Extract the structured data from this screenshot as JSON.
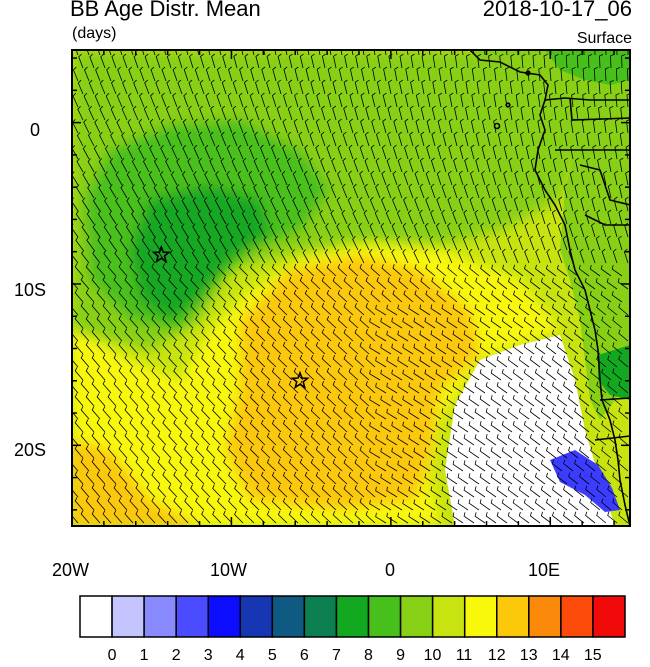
{
  "header": {
    "title": "BB Age Distr. Mean",
    "units": "(days)",
    "datetime": "2018-10-17_06",
    "level": "Surface"
  },
  "axes": {
    "x_ticks": [
      "20W",
      "10W",
      "0",
      "10E"
    ],
    "y_ticks": [
      "0",
      "10S",
      "20S"
    ],
    "lon_range": [
      -20,
      15
    ],
    "lat_range": [
      -25,
      4.5
    ]
  },
  "colorbar": {
    "labels": [
      "0",
      "1",
      "2",
      "3",
      "4",
      "5",
      "6",
      "7",
      "8",
      "9",
      "10",
      "11",
      "12",
      "13",
      "14",
      "15"
    ],
    "colors": [
      "#ffffff",
      "#c4c4ff",
      "#8a8aff",
      "#4b4bff",
      "#0c0cff",
      "#1636b4",
      "#0f5a82",
      "#0c8050",
      "#12a820",
      "#48c01c",
      "#88d016",
      "#c8e410",
      "#f8f80a",
      "#fcc80a",
      "#fc8a0a",
      "#fc4a0a",
      "#f00a0a"
    ]
  },
  "markers": [
    {
      "label": "star-marker-1",
      "lon": -14.4,
      "lat": -8.2
    },
    {
      "label": "star-marker-2",
      "lon": -5.7,
      "lat": -16.0
    }
  ],
  "colors": {
    "land_outline": "#000000",
    "wind_barb": "#000000"
  }
}
